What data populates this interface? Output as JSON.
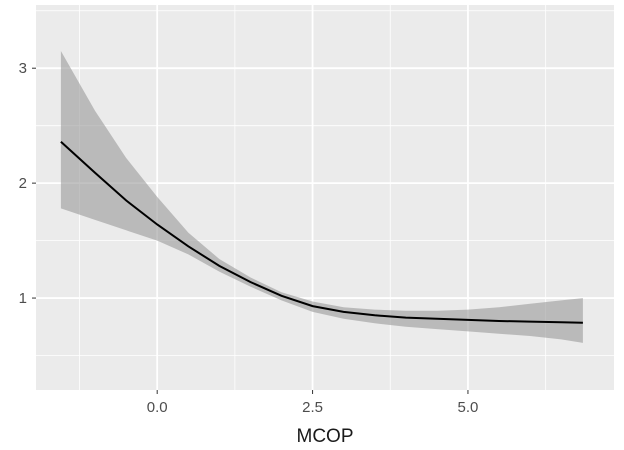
{
  "chart_data": {
    "type": "line",
    "title": "",
    "xlabel": "MCOP",
    "ylabel": "",
    "xlim": [
      -1.95,
      7.35
    ],
    "ylim": [
      0.2,
      3.55
    ],
    "x_ticks": [
      {
        "value": 0.0,
        "label": "0.0"
      },
      {
        "value": 2.5,
        "label": "2.5"
      },
      {
        "value": 5.0,
        "label": "5.0"
      }
    ],
    "x_minor": [
      -1.25,
      1.25,
      3.75,
      6.25
    ],
    "y_ticks": [
      {
        "value": 1,
        "label": "1"
      },
      {
        "value": 2,
        "label": "2"
      },
      {
        "value": 3,
        "label": "3"
      }
    ],
    "y_minor": [
      0.5,
      1.5,
      2.5,
      3.5
    ],
    "grid": true,
    "legend": "none",
    "colors": {
      "panel": "#ebebeb",
      "grid": "#ffffff",
      "line": "#000000",
      "ribbon": "#999999"
    },
    "series": [
      {
        "x": [
          -1.55,
          -1.0,
          -0.5,
          0.0,
          0.5,
          1.0,
          1.5,
          2.0,
          2.5,
          3.0,
          3.5,
          4.0,
          4.5,
          5.0,
          5.5,
          6.0,
          6.5,
          6.85
        ],
        "y": [
          2.36,
          2.09,
          1.85,
          1.64,
          1.45,
          1.28,
          1.14,
          1.02,
          0.93,
          0.88,
          0.85,
          0.83,
          0.82,
          0.81,
          0.8,
          0.795,
          0.79,
          0.785
        ],
        "lower": [
          1.78,
          1.68,
          1.59,
          1.5,
          1.38,
          1.23,
          1.1,
          0.98,
          0.88,
          0.82,
          0.78,
          0.75,
          0.73,
          0.71,
          0.69,
          0.67,
          0.64,
          0.61
        ],
        "upper": [
          3.15,
          2.63,
          2.22,
          1.88,
          1.57,
          1.34,
          1.18,
          1.05,
          0.97,
          0.92,
          0.9,
          0.89,
          0.89,
          0.9,
          0.92,
          0.95,
          0.98,
          1.0
        ]
      }
    ]
  }
}
